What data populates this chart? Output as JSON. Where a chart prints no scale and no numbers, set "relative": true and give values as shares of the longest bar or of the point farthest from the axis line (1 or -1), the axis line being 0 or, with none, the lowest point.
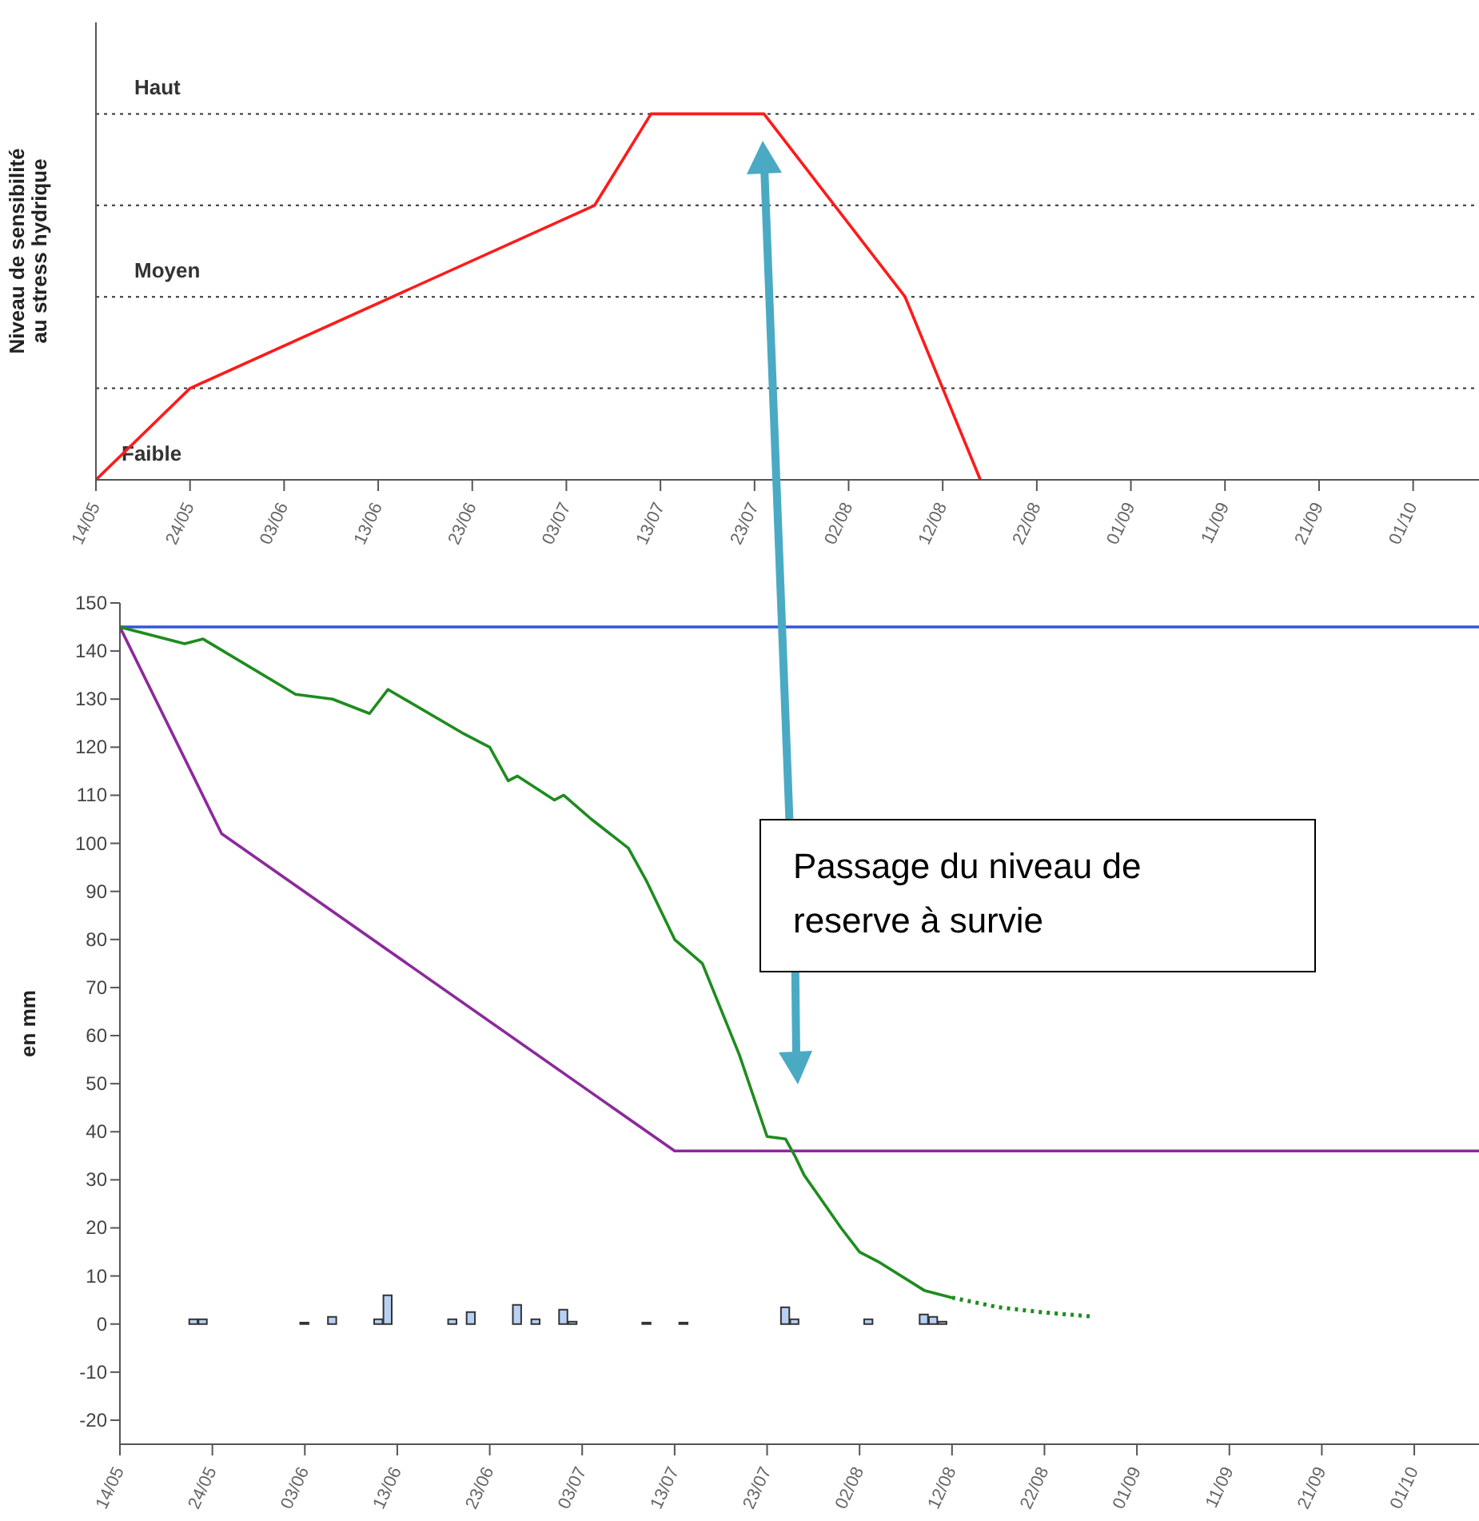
{
  "chart_data": [
    {
      "type": "line",
      "ylabel": "Niveau de sensibilité au stress hydrique",
      "relative": true,
      "annotations": [
        "Faible"
      ],
      "ref_lines": [
        {
          "axis": "y",
          "value": 0.25,
          "label": null,
          "color": "#333333",
          "line_style": "dotted"
        },
        {
          "axis": "y",
          "value": 0.5,
          "label": "Moyen",
          "color": "#333333",
          "line_style": "dotted"
        },
        {
          "axis": "y",
          "value": 0.75,
          "label": null,
          "color": "#333333",
          "line_style": "dotted"
        },
        {
          "axis": "y",
          "value": 1,
          "label": "Haut",
          "color": "#333333",
          "line_style": "dotted"
        }
      ],
      "xlim": [
        "--05-14",
        "--10-08"
      ],
      "xticks": [
        {
          "value": "--05-14",
          "label": "14/05"
        },
        {
          "value": "--05-24",
          "label": "24/05"
        },
        {
          "value": "--06-03",
          "label": "03/06"
        },
        {
          "value": "--06-13",
          "label": "13/06"
        },
        {
          "value": "--06-23",
          "label": "23/06"
        },
        {
          "value": "--07-03",
          "label": "03/07"
        },
        {
          "value": "--07-13",
          "label": "13/07"
        },
        {
          "value": "--07-23",
          "label": "23/07"
        },
        {
          "value": "--08-02",
          "label": "02/08"
        },
        {
          "value": "--08-12",
          "label": "12/08"
        },
        {
          "value": "--08-22",
          "label": "22/08"
        },
        {
          "value": "--09-01",
          "label": "01/09"
        },
        {
          "value": "--09-11",
          "label": "11/09"
        },
        {
          "value": "--09-21",
          "label": "21/09"
        },
        {
          "value": "--10-01",
          "label": "01/10"
        }
      ],
      "series": [
        {
          "color": "#ff1a1a",
          "x": [
            "--05-14",
            "--05-24",
            "--07-06",
            "--07-12",
            "--07-24",
            "--08-08",
            "--08-16"
          ],
          "values": [
            0,
            0.25,
            0.75,
            1,
            1,
            0.5,
            0
          ]
        }
      ]
    },
    {
      "type": "line",
      "ylabel": "en mm",
      "annotations": [
        "Passage du niveau de reserve à survie"
      ],
      "xlim": [
        "--05-14",
        "--10-08"
      ],
      "xticks": [
        {
          "value": "--05-14",
          "label": "14/05"
        },
        {
          "value": "--05-24",
          "label": "24/05"
        },
        {
          "value": "--06-03",
          "label": "03/06"
        },
        {
          "value": "--06-13",
          "label": "13/06"
        },
        {
          "value": "--06-23",
          "label": "23/06"
        },
        {
          "value": "--07-03",
          "label": "03/07"
        },
        {
          "value": "--07-13",
          "label": "13/07"
        },
        {
          "value": "--07-23",
          "label": "23/07"
        },
        {
          "value": "--08-02",
          "label": "02/08"
        },
        {
          "value": "--08-12",
          "label": "12/08"
        },
        {
          "value": "--08-22",
          "label": "22/08"
        },
        {
          "value": "--09-01",
          "label": "01/09"
        },
        {
          "value": "--09-11",
          "label": "11/09"
        },
        {
          "value": "--09-21",
          "label": "21/09"
        },
        {
          "value": "--10-01",
          "label": "01/10"
        }
      ],
      "ylim": [
        -25,
        150
      ],
      "yticks": [
        -20,
        -10,
        0,
        10,
        20,
        30,
        40,
        50,
        60,
        70,
        80,
        90,
        100,
        110,
        120,
        130,
        140,
        150
      ],
      "series": [
        {
          "type": "bar",
          "color": "#b8d0f4",
          "x": [
            "--05-22",
            "--05-23",
            "--06-03",
            "--06-06",
            "--06-11",
            "--06-12",
            "--06-19",
            "--06-21",
            "--06-26",
            "--06-28",
            "--07-01",
            "--07-02",
            "--07-10",
            "--07-14",
            "--07-25",
            "--07-26",
            "--08-03",
            "--08-09",
            "--08-10",
            "--08-11"
          ],
          "values": [
            1,
            1,
            0.3,
            1.5,
            1,
            6,
            1,
            2.5,
            4,
            1,
            3,
            0.5,
            0.3,
            0.3,
            3.5,
            1,
            1,
            2,
            1.5,
            0.5
          ]
        },
        {
          "color": "#3355dd",
          "x": [
            "--05-14",
            "--10-08"
          ],
          "values": [
            145,
            145
          ]
        },
        {
          "color": "#8b2a9b",
          "x": [
            "--05-14",
            "--05-25",
            "--07-13",
            "--10-08"
          ],
          "values": [
            145,
            102,
            36,
            36
          ]
        },
        {
          "color": "#1e8c1e",
          "x": [
            "--05-14",
            "--05-21",
            "--05-23",
            "--06-02",
            "--06-06",
            "--06-10",
            "--06-12",
            "--06-20",
            "--06-23",
            "--06-25",
            "--06-26",
            "--06-30",
            "--07-01",
            "--07-04",
            "--07-08",
            "--07-10",
            "--07-13",
            "--07-16",
            "--07-20",
            "--07-23",
            "--07-25",
            "--07-26",
            "--07-27",
            "--07-31",
            "--08-02",
            "--08-04",
            "--08-09",
            "--08-12"
          ],
          "values": [
            145,
            141.5,
            142.5,
            131,
            130,
            127,
            132,
            123,
            120,
            113,
            114,
            109,
            110,
            105,
            99,
            92,
            80,
            75,
            56,
            39,
            38.5,
            35,
            31,
            20,
            15,
            13,
            7,
            5.5
          ]
        },
        {
          "line_style": "dotted",
          "color": "#1e8c1e",
          "x": [
            "--08-12",
            "--08-17",
            "--08-22",
            "--08-27"
          ],
          "values": [
            5.5,
            3.5,
            2.4,
            1.6
          ]
        }
      ]
    }
  ]
}
